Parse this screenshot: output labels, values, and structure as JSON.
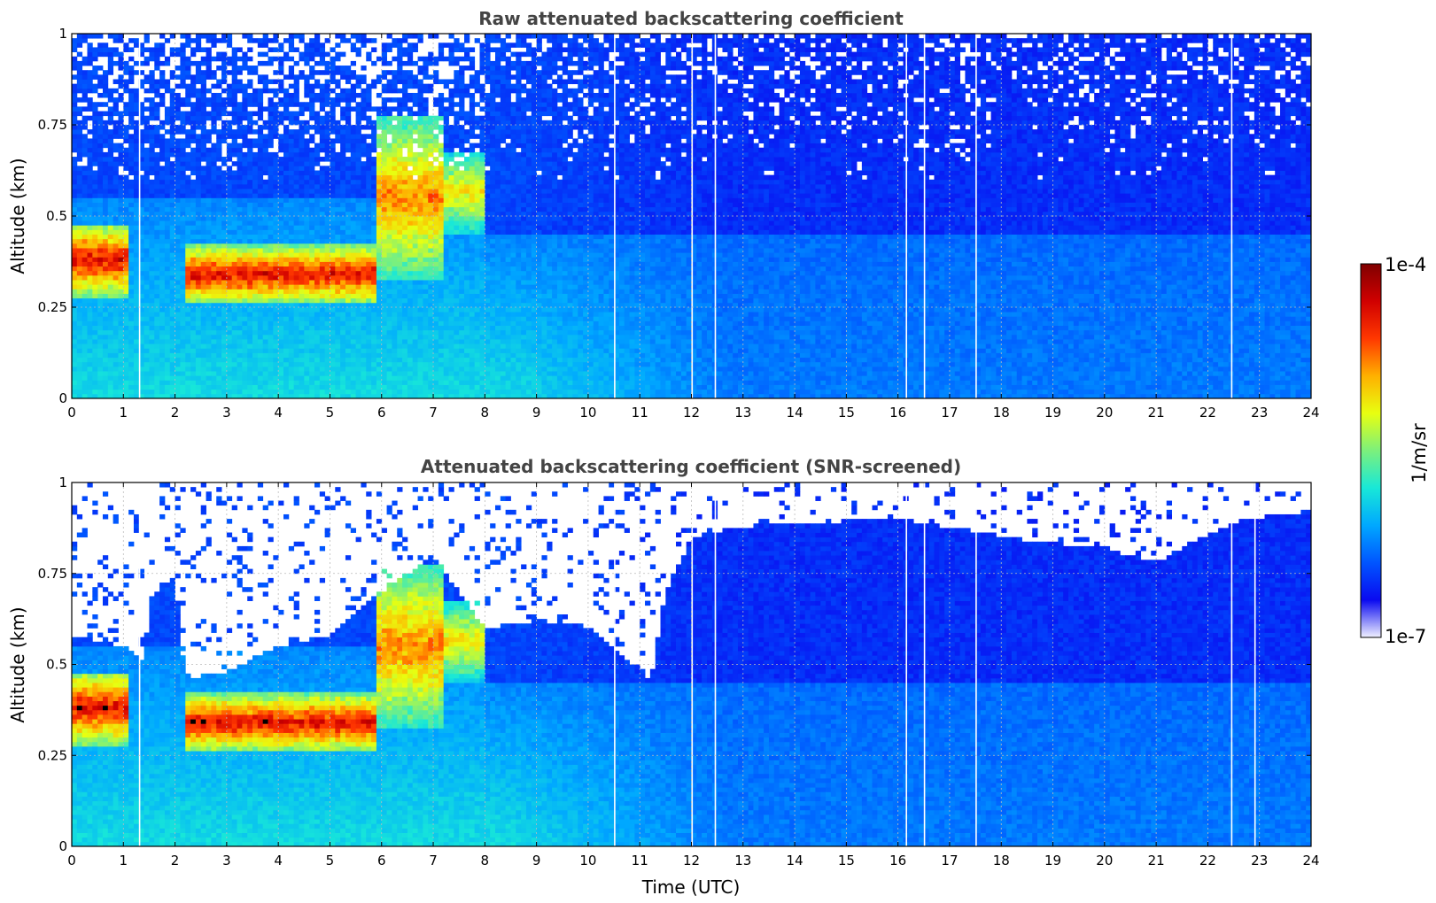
{
  "chart_data": [
    {
      "type": "heatmap",
      "title": "Raw attenuated backscattering coefficient",
      "xlabel": "",
      "ylabel": "Altitude (km)",
      "xlim": [
        0,
        24
      ],
      "ylim": [
        0,
        1
      ],
      "xticks": [
        "0",
        "1",
        "2",
        "3",
        "4",
        "5",
        "6",
        "7",
        "8",
        "9",
        "10",
        "11",
        "12",
        "13",
        "14",
        "15",
        "16",
        "17",
        "18",
        "19",
        "20",
        "21",
        "22",
        "23",
        "24"
      ],
      "yticks": [
        "0",
        "0.25",
        "0.5",
        "0.75",
        "1"
      ],
      "grid": true,
      "screened": false,
      "layers": [
        {
          "t0": 0.0,
          "t1": 1.1,
          "base": 0.28,
          "top": 0.48,
          "level": 0.95
        },
        {
          "t0": 2.2,
          "t1": 5.9,
          "base": 0.26,
          "top": 0.42,
          "level": 0.95
        },
        {
          "t0": 5.9,
          "t1": 7.2,
          "base": 0.32,
          "top": 0.78,
          "level": 0.8
        },
        {
          "t0": 7.2,
          "t1": 8.0,
          "base": 0.45,
          "top": 0.68,
          "level": 0.7
        }
      ],
      "data_gaps": [
        1.3,
        10.5,
        12.0,
        12.45,
        16.15,
        16.5,
        17.5,
        22.45
      ]
    },
    {
      "type": "heatmap",
      "title": "Attenuated backscattering coefficient (SNR-screened)",
      "xlabel": "Time (UTC)",
      "ylabel": "Altitude (km)",
      "xlim": [
        0,
        24
      ],
      "ylim": [
        0,
        1
      ],
      "xticks": [
        "0",
        "1",
        "2",
        "3",
        "4",
        "5",
        "6",
        "7",
        "8",
        "9",
        "10",
        "11",
        "12",
        "13",
        "14",
        "15",
        "16",
        "17",
        "18",
        "19",
        "20",
        "21",
        "22",
        "23",
        "24"
      ],
      "yticks": [
        "0",
        "0.25",
        "0.5",
        "0.75",
        "1"
      ],
      "grid": true,
      "screened": true,
      "signal_top": [
        {
          "t": 0.0,
          "alt": 0.58
        },
        {
          "t": 1.0,
          "alt": 0.55
        },
        {
          "t": 1.4,
          "alt": 0.5
        },
        {
          "t": 1.5,
          "alt": 0.68
        },
        {
          "t": 2.0,
          "alt": 0.74
        },
        {
          "t": 2.2,
          "alt": 0.46
        },
        {
          "t": 3.0,
          "alt": 0.48
        },
        {
          "t": 4.0,
          "alt": 0.55
        },
        {
          "t": 5.0,
          "alt": 0.58
        },
        {
          "t": 6.0,
          "alt": 0.7
        },
        {
          "t": 7.0,
          "alt": 0.8
        },
        {
          "t": 7.5,
          "alt": 0.7
        },
        {
          "t": 8.0,
          "alt": 0.6
        },
        {
          "t": 9.0,
          "alt": 0.62
        },
        {
          "t": 10.0,
          "alt": 0.6
        },
        {
          "t": 10.5,
          "alt": 0.55
        },
        {
          "t": 11.2,
          "alt": 0.45
        },
        {
          "t": 11.5,
          "alt": 0.7
        },
        {
          "t": 12.0,
          "alt": 0.85
        },
        {
          "t": 13.0,
          "alt": 0.88
        },
        {
          "t": 16.0,
          "alt": 0.9
        },
        {
          "t": 18.0,
          "alt": 0.85
        },
        {
          "t": 20.0,
          "alt": 0.82
        },
        {
          "t": 21.0,
          "alt": 0.78
        },
        {
          "t": 22.0,
          "alt": 0.86
        },
        {
          "t": 22.7,
          "alt": 0.9
        },
        {
          "t": 24.0,
          "alt": 0.92
        }
      ],
      "layers": [
        {
          "t0": 0.0,
          "t1": 1.1,
          "base": 0.28,
          "top": 0.48,
          "level": 0.95
        },
        {
          "t0": 2.2,
          "t1": 5.9,
          "base": 0.26,
          "top": 0.42,
          "level": 0.95
        },
        {
          "t0": 5.9,
          "t1": 7.2,
          "base": 0.32,
          "top": 0.78,
          "level": 0.8
        },
        {
          "t0": 7.2,
          "t1": 8.0,
          "base": 0.45,
          "top": 0.68,
          "level": 0.7
        }
      ],
      "data_gaps": [
        1.3,
        10.5,
        12.0,
        12.45,
        16.15,
        16.5,
        17.5,
        22.45,
        22.9
      ]
    }
  ],
  "colorbar": {
    "label": "1/m/sr",
    "max_label": "1e-4",
    "min_label": "1e-7",
    "min": 1e-07,
    "max": 0.0001,
    "scale": "log",
    "colormap": [
      "#f0f0ff",
      "#0a0af0",
      "#0055ff",
      "#00a8ff",
      "#18e8d8",
      "#7cf07c",
      "#e8ff10",
      "#ffb000",
      "#ff3800",
      "#d00000",
      "#800000"
    ]
  }
}
